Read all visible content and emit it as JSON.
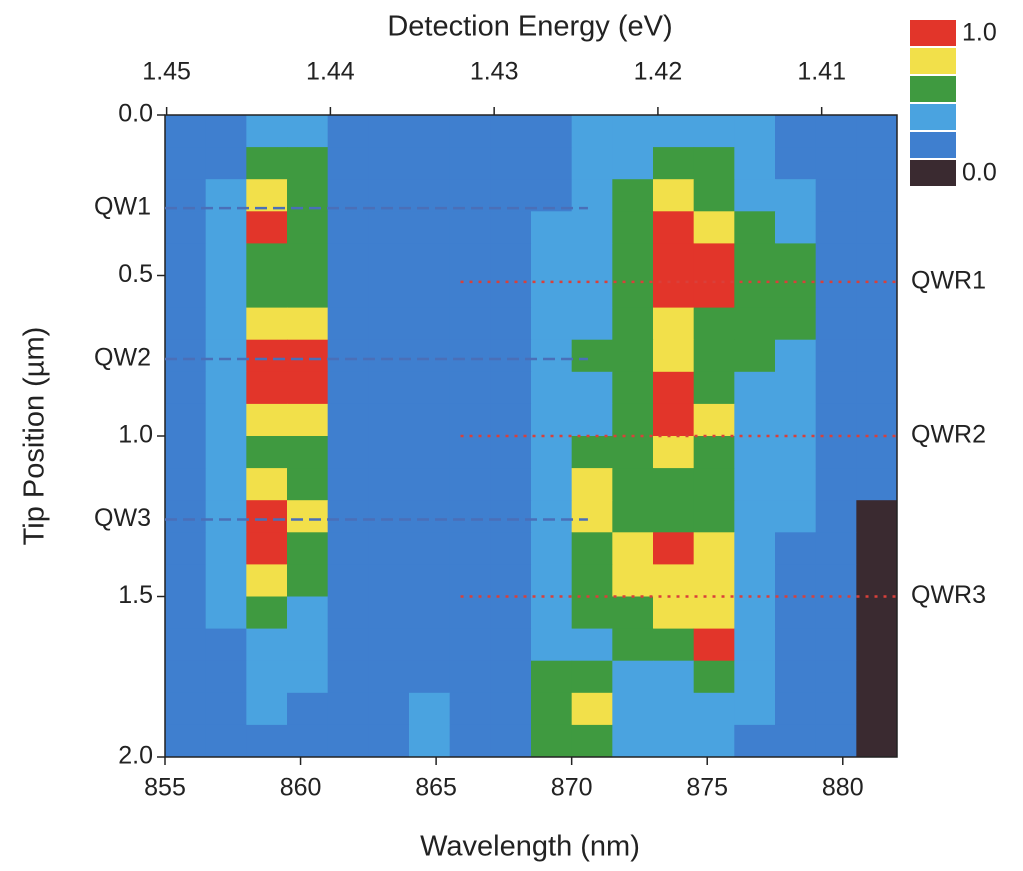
{
  "chart_data": {
    "type": "heatmap",
    "title": "Detection Energy (eV)",
    "x_label": "Wavelength (nm)",
    "y_label": "Tip Position (µm)",
    "xlim": [
      855,
      882
    ],
    "xticks": [
      855,
      860,
      865,
      870,
      875,
      880
    ],
    "x2lim": [
      1.4501,
      1.4054
    ],
    "x2ticks": [
      1.45,
      1.44,
      1.43,
      1.42,
      1.41
    ],
    "ylim": [
      0,
      2
    ],
    "y_reversed": true,
    "yticks": [
      {
        "value": 0,
        "label": "0.0"
      },
      {
        "value": 0.5,
        "label": "0.5"
      },
      {
        "value": 1,
        "label": "1.0"
      },
      {
        "value": 1.5,
        "label": "1.5"
      },
      {
        "value": 2,
        "label": "2.0"
      }
    ],
    "colors": [
      "#3a2a30",
      "#3f7fcf",
      "#4aa3e0",
      "#3f9a40",
      "#f2e04a",
      "#e2352a"
    ],
    "colorbar_ticks": [
      {
        "value": 1,
        "label": "1.0"
      },
      {
        "value": 0,
        "label": "0.0"
      }
    ],
    "x_edges": [
      855,
      856.5,
      858,
      859.5,
      861,
      862.5,
      864,
      865.5,
      867,
      868.5,
      870,
      871.5,
      873,
      874.5,
      876,
      877.5,
      879,
      880.5,
      882
    ],
    "y_edges": [
      0,
      0.1,
      0.2,
      0.3,
      0.4,
      0.5,
      0.6,
      0.7,
      0.8,
      0.9,
      1.0,
      1.1,
      1.2,
      1.3,
      1.4,
      1.5,
      1.6,
      1.7,
      1.8,
      1.9,
      2.0
    ],
    "z": [
      [
        0.2,
        0.3,
        0.45,
        0.4,
        0.17,
        0.25,
        0.25,
        0.25,
        0.25,
        0.3,
        0.35,
        0.35,
        0.4,
        0.4,
        0.35,
        0.3,
        0.25,
        0.2
      ],
      [
        0.2,
        0.3,
        0.6,
        0.5,
        0.17,
        0.25,
        0.25,
        0.25,
        0.25,
        0.3,
        0.35,
        0.4,
        0.5,
        0.5,
        0.4,
        0.3,
        0.25,
        0.2
      ],
      [
        0.2,
        0.35,
        0.8,
        0.6,
        0.17,
        0.25,
        0.3,
        0.25,
        0.3,
        0.3,
        0.4,
        0.5,
        0.7,
        0.6,
        0.45,
        0.35,
        0.25,
        0.2
      ],
      [
        0.2,
        0.35,
        0.85,
        0.6,
        0.17,
        0.3,
        0.25,
        0.3,
        0.25,
        0.35,
        0.4,
        0.55,
        0.85,
        0.7,
        0.5,
        0.4,
        0.25,
        0.2
      ],
      [
        0.2,
        0.35,
        0.65,
        0.55,
        0.17,
        0.25,
        0.3,
        0.25,
        0.3,
        0.35,
        0.45,
        0.55,
        0.95,
        0.85,
        0.55,
        0.55,
        0.3,
        0.2
      ],
      [
        0.2,
        0.35,
        0.6,
        0.5,
        0.17,
        0.25,
        0.25,
        0.3,
        0.3,
        0.35,
        0.45,
        0.6,
        0.9,
        0.85,
        0.55,
        0.6,
        0.3,
        0.2
      ],
      [
        0.2,
        0.4,
        0.75,
        0.7,
        0.17,
        0.3,
        0.25,
        0.3,
        0.3,
        0.35,
        0.45,
        0.6,
        0.7,
        0.6,
        0.5,
        0.55,
        0.3,
        0.2
      ],
      [
        0.2,
        0.4,
        0.95,
        0.85,
        0.17,
        0.3,
        0.25,
        0.3,
        0.3,
        0.35,
        0.5,
        0.65,
        0.7,
        0.55,
        0.5,
        0.4,
        0.3,
        0.2
      ],
      [
        0.2,
        0.4,
        0.85,
        0.85,
        0.17,
        0.25,
        0.25,
        0.3,
        0.3,
        0.35,
        0.45,
        0.6,
        0.85,
        0.6,
        0.45,
        0.4,
        0.25,
        0.2
      ],
      [
        0.2,
        0.4,
        0.7,
        0.7,
        0.17,
        0.25,
        0.25,
        0.3,
        0.3,
        0.35,
        0.45,
        0.6,
        0.85,
        0.7,
        0.45,
        0.35,
        0.25,
        0.2
      ],
      [
        0.2,
        0.4,
        0.6,
        0.55,
        0.17,
        0.25,
        0.25,
        0.3,
        0.3,
        0.4,
        0.5,
        0.6,
        0.7,
        0.6,
        0.45,
        0.35,
        0.25,
        0.2
      ],
      [
        0.2,
        0.4,
        0.7,
        0.6,
        0.17,
        0.25,
        0.3,
        0.25,
        0.3,
        0.45,
        0.7,
        0.55,
        0.6,
        0.6,
        0.45,
        0.35,
        0.25,
        0.17
      ],
      [
        0.2,
        0.4,
        0.85,
        0.7,
        0.17,
        0.25,
        0.25,
        0.25,
        0.3,
        0.45,
        0.7,
        0.6,
        0.6,
        0.6,
        0.45,
        0.35,
        0.25,
        0.1
      ],
      [
        0.2,
        0.35,
        0.85,
        0.65,
        0.17,
        0.25,
        0.25,
        0.25,
        0.3,
        0.45,
        0.65,
        0.7,
        0.85,
        0.7,
        0.45,
        0.3,
        0.25,
        0.08
      ],
      [
        0.2,
        0.35,
        0.7,
        0.55,
        0.17,
        0.25,
        0.25,
        0.3,
        0.3,
        0.45,
        0.6,
        0.7,
        0.75,
        0.7,
        0.45,
        0.3,
        0.2,
        0.08
      ],
      [
        0.2,
        0.35,
        0.5,
        0.45,
        0.17,
        0.25,
        0.25,
        0.3,
        0.3,
        0.4,
        0.5,
        0.6,
        0.7,
        0.75,
        0.4,
        0.3,
        0.2,
        0.08
      ],
      [
        0.2,
        0.3,
        0.4,
        0.4,
        0.17,
        0.25,
        0.25,
        0.3,
        0.3,
        0.4,
        0.45,
        0.5,
        0.6,
        0.85,
        0.4,
        0.3,
        0.2,
        0.08
      ],
      [
        0.2,
        0.3,
        0.35,
        0.35,
        0.17,
        0.25,
        0.3,
        0.25,
        0.3,
        0.5,
        0.55,
        0.45,
        0.45,
        0.5,
        0.35,
        0.25,
        0.2,
        0.08
      ],
      [
        0.2,
        0.3,
        0.35,
        0.3,
        0.17,
        0.3,
        0.35,
        0.3,
        0.3,
        0.55,
        0.7,
        0.45,
        0.4,
        0.4,
        0.35,
        0.25,
        0.2,
        0.08
      ],
      [
        0.2,
        0.25,
        0.3,
        0.3,
        0.17,
        0.3,
        0.4,
        0.3,
        0.3,
        0.5,
        0.5,
        0.4,
        0.35,
        0.35,
        0.3,
        0.25,
        0.2,
        0.08
      ]
    ],
    "markers": [
      {
        "label": "QW1",
        "y": 0.29,
        "x": [
          855,
          870.6
        ],
        "color": "#4a6fb8",
        "side": "left"
      },
      {
        "label": "QW2",
        "y": 0.76,
        "x": [
          855,
          870.6
        ],
        "color": "#4a6fb8",
        "side": "left"
      },
      {
        "label": "QW3",
        "y": 1.26,
        "x": [
          855,
          870.6
        ],
        "color": "#4a6fb8",
        "side": "left"
      },
      {
        "label": "QWR1",
        "y": 0.52,
        "x": [
          865.9,
          882
        ],
        "color": "#d9403a",
        "side": "right"
      },
      {
        "label": "QWR2",
        "y": 1.0,
        "x": [
          865.9,
          882
        ],
        "color": "#d9403a",
        "side": "right"
      },
      {
        "label": "QWR3",
        "y": 1.5,
        "x": [
          865.9,
          882
        ],
        "color": "#d9403a",
        "side": "right"
      }
    ]
  }
}
